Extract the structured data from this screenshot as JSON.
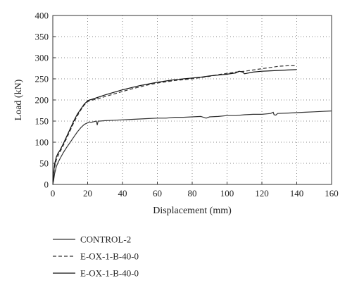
{
  "chart_data": {
    "type": "line",
    "xlabel": "Displacement (mm)",
    "ylabel": "Load (kN)",
    "xlim": [
      0,
      160
    ],
    "ylim": [
      0,
      400
    ],
    "xticks": [
      "0",
      "20",
      "40",
      "60",
      "80",
      "100",
      "120",
      "140",
      "160"
    ],
    "yticks": [
      "0",
      "50",
      "100",
      "150",
      "200",
      "250",
      "300",
      "350",
      "400"
    ],
    "grid": "dotted",
    "legend_position": "below-left",
    "series": [
      {
        "name": "CONTROL-2",
        "style": "solid",
        "color": "#333333",
        "x": [
          0,
          0.5,
          1,
          2,
          3,
          4,
          6,
          8,
          10,
          12,
          14,
          16,
          18,
          20,
          21,
          22,
          24,
          25,
          25.5,
          26,
          27,
          30,
          35,
          40,
          45,
          50,
          55,
          60,
          65,
          70,
          75,
          80,
          85,
          88,
          90,
          95,
          100,
          105,
          110,
          115,
          120,
          125,
          126.5,
          127,
          128,
          129,
          135,
          140,
          145,
          150,
          155,
          160
        ],
        "y": [
          0,
          10,
          25,
          42,
          52,
          60,
          75,
          88,
          100,
          112,
          124,
          134,
          142,
          146,
          148,
          147,
          149,
          150,
          141,
          150,
          150,
          151,
          152,
          153,
          154,
          155,
          156,
          157,
          157,
          159,
          159,
          160,
          161,
          157,
          160,
          161,
          163,
          163,
          165,
          166,
          166,
          168,
          171,
          165,
          164,
          168,
          169,
          170,
          171,
          172,
          173,
          174
        ]
      },
      {
        "name": "E-OX-1-B-40-0",
        "style": "dashed",
        "color": "#333333",
        "x": [
          0,
          0.5,
          1,
          2,
          3,
          4,
          6,
          8,
          10,
          12,
          14,
          16,
          18,
          20,
          21,
          22,
          25,
          30,
          35,
          40,
          45,
          50,
          55,
          60,
          65,
          70,
          75,
          80,
          85,
          90,
          95,
          100,
          105,
          110,
          115,
          120,
          125,
          130,
          135,
          140
        ],
        "y": [
          0,
          22,
          40,
          58,
          68,
          76,
          92,
          110,
          128,
          146,
          162,
          176,
          188,
          196,
          198,
          199,
          202,
          208,
          214,
          220,
          226,
          231,
          236,
          240,
          243,
          246,
          248,
          250,
          253,
          256,
          260,
          263,
          266,
          268,
          271,
          274,
          277,
          280,
          281,
          281
        ]
      },
      {
        "name": "E-OX-1-B-40-0",
        "style": "solid",
        "color": "#111111",
        "x": [
          0,
          0.5,
          1,
          2,
          3,
          4,
          6,
          8,
          10,
          12,
          14,
          16,
          18,
          20,
          21,
          22,
          25,
          30,
          35,
          40,
          45,
          50,
          55,
          60,
          65,
          70,
          75,
          80,
          85,
          90,
          95,
          100,
          105,
          107,
          109,
          110,
          115,
          120,
          125,
          130,
          135,
          140
        ],
        "y": [
          0,
          28,
          48,
          65,
          74,
          80,
          96,
          114,
          132,
          150,
          166,
          178,
          190,
          198,
          200,
          201,
          205,
          212,
          218,
          224,
          229,
          234,
          238,
          242,
          245,
          248,
          250,
          252,
          254,
          257,
          259,
          261,
          264,
          268,
          266,
          262,
          266,
          268,
          269,
          270,
          271,
          272
        ]
      }
    ]
  }
}
